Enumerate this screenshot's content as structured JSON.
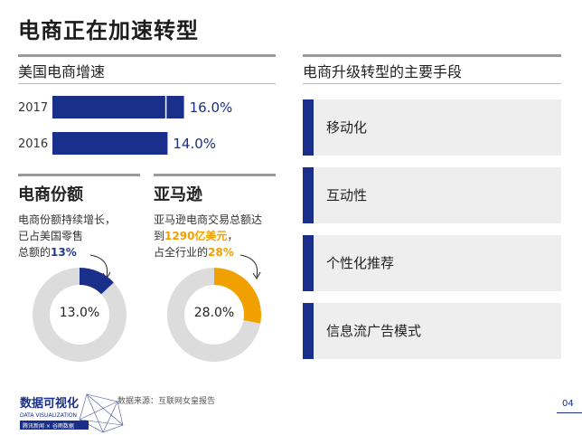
{
  "title": "电商正在加速转型",
  "growth_section": {
    "title": "美国电商增速"
  },
  "share_section": {
    "title": "电商份额",
    "text_line1": "电商份额持续增长，",
    "text_line2": "已占美国零售",
    "text_line3_prefix": "总额的",
    "text_line3_value": "13%",
    "donut_label": "13.0%"
  },
  "amazon_section": {
    "title": "亚马逊",
    "text_line1": "亚马逊电商交易总额达",
    "text_line2_prefix": "到",
    "text_line2_value": "1290亿美元",
    "text_line2_suffix": "，",
    "text_line3_prefix": "占全行业的",
    "text_line3_value": "28%",
    "donut_label": "28.0%"
  },
  "methods_section": {
    "title": "电商升级转型的主要手段",
    "items": [
      "移动化",
      "互动性",
      "个性化推荐",
      "信息流广告模式"
    ]
  },
  "source": "数据来源：互联网女皇报告",
  "page_number": "04",
  "logo": {
    "title": "数据可视化",
    "subtitle": "DATA VISUALIZATION",
    "brand": "腾讯新闻 × 谷雨数据"
  },
  "chart_data": [
    {
      "type": "bar",
      "orientation": "horizontal",
      "title": "美国电商增速",
      "categories": [
        "2017",
        "2016"
      ],
      "values": [
        16.0,
        14.0
      ],
      "value_labels": [
        "16.0%",
        "14.0%"
      ],
      "unit": "%",
      "colors": {
        "bar": "#1a2f8a"
      }
    },
    {
      "type": "pie",
      "style": "donut",
      "title": "电商份额",
      "values": [
        13.0,
        87.0
      ],
      "center_label": "13.0%",
      "colors": [
        "#1a2f8a",
        "#dcdcdc"
      ]
    },
    {
      "type": "pie",
      "style": "donut",
      "title": "亚马逊",
      "values": [
        28.0,
        72.0
      ],
      "center_label": "28.0%",
      "colors": [
        "#f0a000",
        "#dcdcdc"
      ]
    }
  ],
  "colors": {
    "accent_blue": "#1a2f8a",
    "accent_orange": "#f0a000",
    "panel_gray": "#eeeeee"
  }
}
